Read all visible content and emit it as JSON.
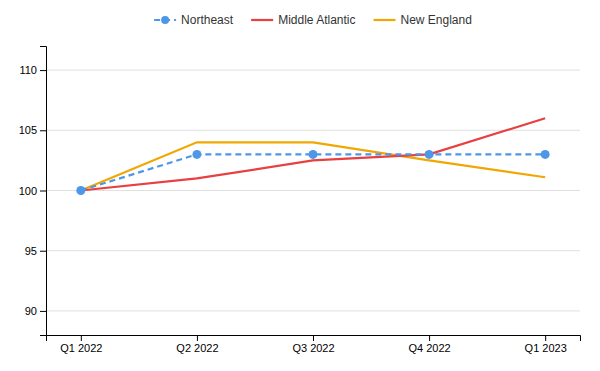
{
  "chart_data": {
    "type": "line",
    "categories": [
      "Q1 2022",
      "Q2 2022",
      "Q3 2022",
      "Q4 2022",
      "Q1 2023"
    ],
    "series": [
      {
        "name": "Northeast",
        "color": "#4D96E8",
        "values": [
          100.0,
          103.0,
          103.0,
          103.0,
          103.0
        ],
        "marker": "circle",
        "line_style": "dashed"
      },
      {
        "name": "Middle Atlantic",
        "color": "#E84040",
        "values": [
          100.0,
          101.0,
          102.5,
          103.0,
          106.0
        ],
        "line_style": "solid"
      },
      {
        "name": "New England",
        "color": "#F0A800",
        "values": [
          100.0,
          104.0,
          104.0,
          102.5,
          101.1
        ],
        "line_style": "solid"
      }
    ],
    "ylim": [
      88,
      112
    ],
    "yticks": [
      90,
      95,
      100,
      105,
      110
    ],
    "grid": true,
    "legend": "top"
  }
}
